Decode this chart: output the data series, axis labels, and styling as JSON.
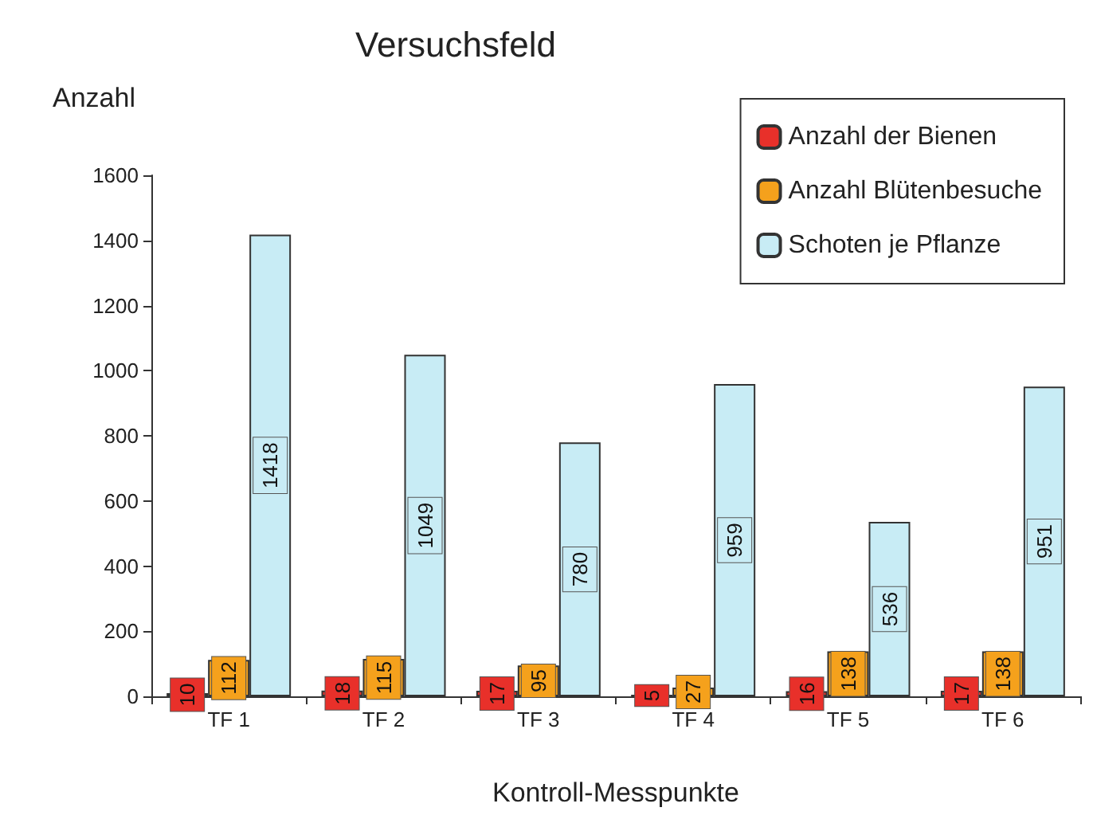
{
  "chart_data": {
    "type": "bar",
    "title": "Versuchsfeld",
    "ylabel": "Anzahl",
    "xlabel": "Kontroll-Messpunkte",
    "categories": [
      "TF 1",
      "TF 2",
      "TF 3",
      "TF 4",
      "TF 5",
      "TF 6"
    ],
    "series": [
      {
        "name": "Anzahl der Bienen",
        "color": "#e8302a",
        "values": [
          10,
          18,
          17,
          5,
          16,
          17
        ]
      },
      {
        "name": "Anzahl Blütenbesuche",
        "color": "#f5a11c",
        "values": [
          112,
          115,
          95,
          27,
          138,
          138
        ]
      },
      {
        "name": "Schoten je Pflanze",
        "color": "#c8ecf5",
        "values": [
          1418,
          1049,
          780,
          959,
          536,
          951
        ]
      }
    ],
    "ylim": [
      0,
      1600
    ],
    "yticks": [
      0,
      200,
      400,
      600,
      800,
      1000,
      1200,
      1400,
      1600
    ],
    "grid": false,
    "legend": "top right",
    "data_labels": true
  }
}
